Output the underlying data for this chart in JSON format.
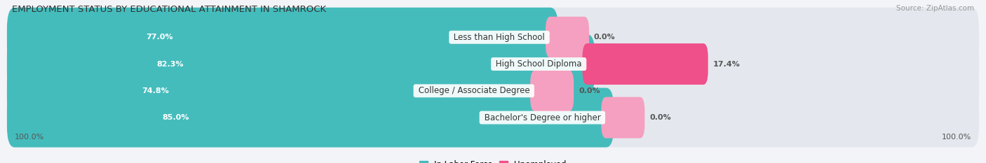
{
  "title": "EMPLOYMENT STATUS BY EDUCATIONAL ATTAINMENT IN SHAMROCK",
  "source": "Source: ZipAtlas.com",
  "categories": [
    "Less than High School",
    "High School Diploma",
    "College / Associate Degree",
    "Bachelor's Degree or higher"
  ],
  "in_labor_force": [
    77.0,
    82.3,
    74.8,
    85.0
  ],
  "unemployed": [
    0.0,
    17.4,
    0.0,
    0.0
  ],
  "labor_color": "#45bcbc",
  "unemployed_color_strong": "#f0508a",
  "unemployed_color_light": "#f5a0c0",
  "bar_bg_color": "#e4e8ee",
  "background_color": "#f2f4f8",
  "bar_height": 0.62,
  "total_width": 100.0,
  "x_left_label": "100.0%",
  "x_right_label": "100.0%",
  "title_fontsize": 9.5,
  "label_fontsize": 8.5,
  "tick_fontsize": 8,
  "source_fontsize": 7.5,
  "value_label_fontsize": 8,
  "unemp_strong_idx": 1
}
